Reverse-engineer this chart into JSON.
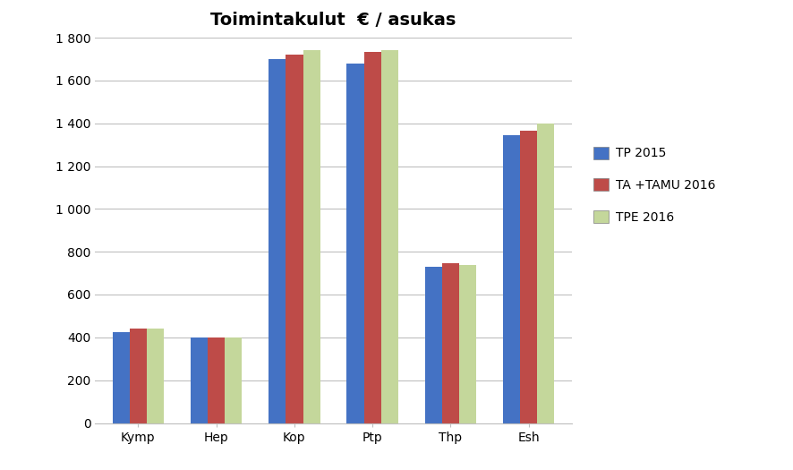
{
  "title": "Toimintakulut  € / asukas",
  "categories": [
    "Kymp",
    "Hep",
    "Kop",
    "Ptp",
    "Thp",
    "Esh"
  ],
  "series": [
    {
      "name": "TP 2015",
      "color": "#4472C4",
      "values": [
        425,
        400,
        1700,
        1680,
        730,
        1345
      ]
    },
    {
      "name": "TA +TAMU 2016",
      "color": "#BE4B48",
      "values": [
        440,
        400,
        1720,
        1735,
        745,
        1365
      ]
    },
    {
      "name": "TPE 2016",
      "color": "#C4D79B",
      "values": [
        440,
        400,
        1740,
        1740,
        740,
        1400
      ]
    }
  ],
  "ylim": [
    0,
    1800
  ],
  "yticks": [
    0,
    200,
    400,
    600,
    800,
    1000,
    1200,
    1400,
    1600,
    1800
  ],
  "background_color": "#FFFFFF",
  "grid_color": "#BFBFBF",
  "title_fontsize": 14,
  "tick_fontsize": 10,
  "legend_fontsize": 10,
  "bar_width": 0.22,
  "figsize": [
    8.87,
    5.25
  ],
  "dpi": 100
}
